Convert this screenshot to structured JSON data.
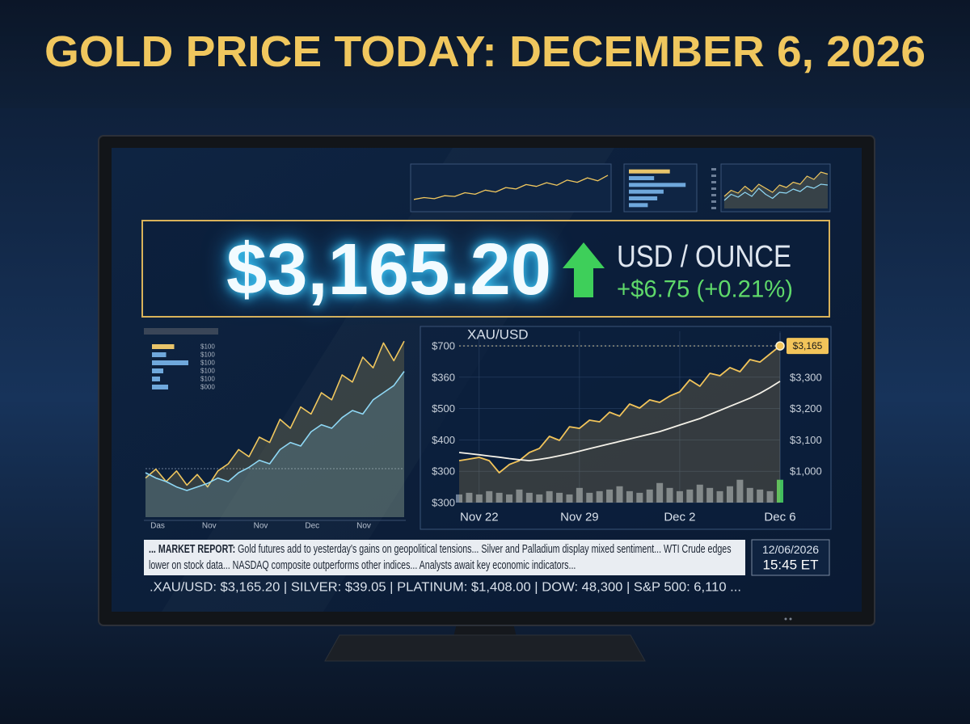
{
  "header": {
    "title": "GOLD PRICE TODAY: DECEMBER 6, 2026"
  },
  "price": {
    "value": "$3,165.20",
    "unit": "USD / OUNCE",
    "change": "+$6.75 (+0.21%)"
  },
  "chart_data": [
    {
      "type": "line",
      "title": "XAU/USD",
      "categories": [
        null,
        null,
        "Nov 22",
        null,
        null,
        null,
        null,
        null,
        null,
        null,
        null,
        null,
        "Nov 29",
        null,
        null,
        null,
        null,
        null,
        null,
        null,
        null,
        null,
        "Dec 2",
        null,
        null,
        null,
        null,
        null,
        null,
        null,
        null,
        null,
        "Dec 6"
      ],
      "series": [
        {
          "color": "#f2c45a",
          "area": true,
          "values": [
            25.7,
            26.7,
            27.7,
            25.7,
            18.3,
            23.3,
            25.7,
            30.7,
            33.2,
            40.6,
            38.1,
            46.5,
            45.5,
            50.5,
            49.5,
            55.4,
            53.0,
            60.4,
            57.9,
            62.9,
            61.4,
            65.3,
            67.8,
            75.2,
            71.3,
            79.2,
            77.7,
            82.7,
            80.2,
            87.6,
            86.1,
            91.1,
            96.0
          ]
        },
        {
          "color": "#f4f1e8",
          "area": false,
          "values": [
            30.7,
            30,
            29.3,
            28.5,
            27.8,
            27,
            26.3,
            25.7,
            26.5,
            27.5,
            28.7,
            30,
            31.5,
            33,
            34.5,
            36,
            37.5,
            39,
            40.5,
            42,
            43.5,
            45.5,
            47.5,
            49.5,
            51.5,
            54,
            56.5,
            59,
            61.5,
            64,
            67,
            70.5,
            74.3
          ]
        }
      ],
      "volume": [
        5,
        6,
        5,
        7,
        6,
        5,
        8,
        6,
        5,
        7,
        6,
        5,
        9,
        6,
        7,
        8,
        10,
        7,
        6,
        8,
        12,
        9,
        7,
        8,
        11,
        9,
        7,
        10,
        14,
        9,
        8,
        7,
        14
      ],
      "volume_color": "#7d8ea6",
      "last_volume_color": "#4cd964",
      "ylim": [
        0,
        100
      ],
      "left_labels": [
        "$700",
        "$360",
        "$500",
        "$400",
        "$300",
        "$300"
      ],
      "right_labels": [
        "$3,300",
        "$3,200",
        "$3,100",
        "$1,000"
      ],
      "annotation": "$3,165"
    },
    {
      "type": "line",
      "x_labels": [
        "Das",
        "Nov",
        "Nov",
        "Dec",
        "Nov"
      ],
      "series": [
        {
          "color": "#f0c75e",
          "area": true,
          "values": [
            22,
            27,
            20,
            26,
            18,
            24,
            17,
            26,
            30,
            38,
            34,
            45,
            42,
            55,
            50,
            62,
            58,
            70,
            66,
            80,
            76,
            90,
            84,
            98,
            88,
            99
          ]
        },
        {
          "color": "#8fd8f5",
          "area": true,
          "values": [
            25,
            22,
            20,
            17,
            15,
            17,
            19,
            22,
            20,
            25,
            28,
            32,
            30,
            38,
            42,
            40,
            48,
            52,
            50,
            56,
            60,
            58,
            66,
            70,
            74,
            82
          ]
        }
      ],
      "ylim": [
        0,
        100
      ]
    },
    {
      "type": "bar",
      "categories": [
        "$100",
        "$100",
        "$100",
        "$100",
        "$100",
        "$000"
      ],
      "values": [
        55,
        35,
        90,
        28,
        20,
        40
      ],
      "colors": [
        "#e8c46a",
        "#6fa8dc",
        "#6fa8dc",
        "#6fa8dc",
        "#6fa8dc",
        "#6fa8dc"
      ],
      "xlim": [
        0,
        100
      ]
    },
    {
      "type": "line",
      "series": [
        {
          "color": "#f0c75e",
          "area": false,
          "values": [
            20,
            25,
            22,
            30,
            28,
            38,
            34,
            45,
            40,
            52,
            48,
            60,
            55,
            65,
            58,
            72,
            66,
            78,
            70,
            85
          ]
        }
      ],
      "ylim": [
        0,
        100
      ]
    },
    {
      "type": "bar",
      "values": [
        65,
        40,
        90,
        55,
        45,
        30
      ],
      "colors": [
        "#e8c46a",
        "#6fa8dc",
        "#6fa8dc",
        "#6fa8dc",
        "#6fa8dc",
        "#6fa8dc"
      ],
      "xlim": [
        0,
        100
      ]
    },
    {
      "type": "line",
      "series": [
        {
          "color": "#f0c75e",
          "area": true,
          "values": [
            30,
            45,
            38,
            55,
            42,
            60,
            50,
            40,
            58,
            52,
            65,
            60,
            80,
            72,
            90,
            85
          ]
        },
        {
          "color": "#8fd8f5",
          "area": false,
          "values": [
            20,
            35,
            28,
            40,
            30,
            50,
            35,
            25,
            40,
            38,
            48,
            42,
            55,
            50,
            60,
            58
          ]
        }
      ],
      "ylim": [
        0,
        100
      ]
    }
  ],
  "ticker": {
    "report_label": "... MARKET REPORT:",
    "report_text": "Gold futures add to yesterday's gains on geopolitical tensions... Silver and Palladium display mixed sentiment... WTI Crude edges lower on stock data... NASDAQ composite outperforms other indices... Analysts await key economic indicators...",
    "date": "12/06/2026",
    "time": "15:45 ET",
    "quotes": ".XAU/USD: $3,165.20 | SILVER: $39.05 | PLATINUM: $1,408.00 | DOW: 48,300 | S&P 500: 6,110 ..."
  }
}
